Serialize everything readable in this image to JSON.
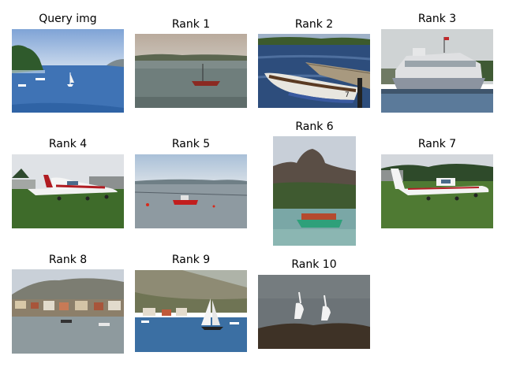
{
  "figure": {
    "cells": [
      {
        "title": "Query img",
        "subject": "coastal bay with sailboats and island"
      },
      {
        "title": "Rank 1",
        "subject": "small boat moored on calm water"
      },
      {
        "title": "Rank 2",
        "subject": "rowboat next to wooden pier"
      },
      {
        "title": "Rank 3",
        "subject": "white floating building on water"
      },
      {
        "title": "Rank 4",
        "subject": "small propeller plane on grass"
      },
      {
        "title": "Rank 5",
        "subject": "red motorboat on gray sea"
      },
      {
        "title": "Rank 6",
        "subject": "green boat with people below rock cliff"
      },
      {
        "title": "Rank 7",
        "subject": "white airplane on grass field"
      },
      {
        "title": "Rank 8",
        "subject": "coastal town with mountains"
      },
      {
        "title": "Rank 9",
        "subject": "sailboat in harbor town"
      },
      {
        "title": "Rank 10",
        "subject": "swans on rocky shore"
      }
    ]
  }
}
